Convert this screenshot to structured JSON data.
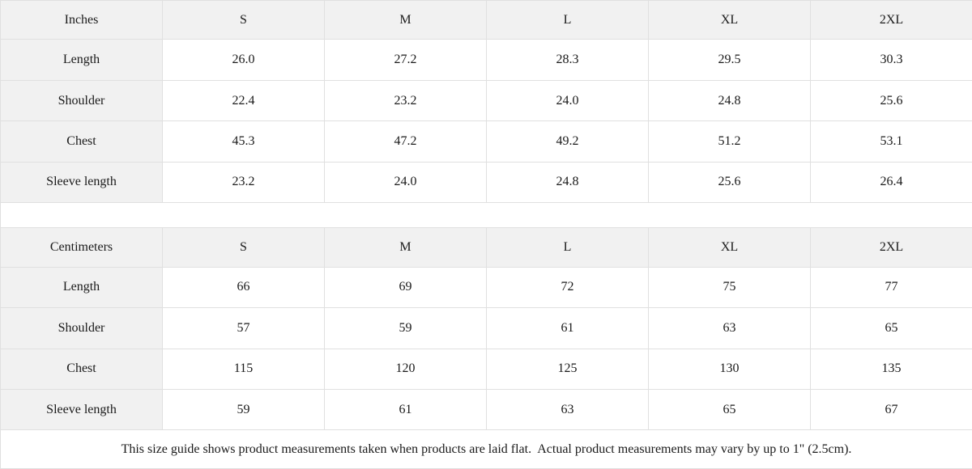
{
  "sections": [
    {
      "unit_label": "Inches",
      "size_headers": [
        "S",
        "M",
        "L",
        "XL",
        "2XL"
      ],
      "rows": [
        {
          "label": "Length",
          "values": [
            "26.0",
            "27.2",
            "28.3",
            "29.5",
            "30.3"
          ]
        },
        {
          "label": "Shoulder",
          "values": [
            "22.4",
            "23.2",
            "24.0",
            "24.8",
            "25.6"
          ]
        },
        {
          "label": "Chest",
          "values": [
            "45.3",
            "47.2",
            "49.2",
            "51.2",
            "53.1"
          ]
        },
        {
          "label": "Sleeve length",
          "values": [
            "23.2",
            "24.0",
            "24.8",
            "25.6",
            "26.4"
          ]
        }
      ]
    },
    {
      "unit_label": "Centimeters",
      "size_headers": [
        "S",
        "M",
        "L",
        "XL",
        "2XL"
      ],
      "rows": [
        {
          "label": "Length",
          "values": [
            "66",
            "69",
            "72",
            "75",
            "77"
          ]
        },
        {
          "label": "Shoulder",
          "values": [
            "57",
            "59",
            "61",
            "63",
            "65"
          ]
        },
        {
          "label": "Chest",
          "values": [
            "115",
            "120",
            "125",
            "130",
            "135"
          ]
        },
        {
          "label": "Sleeve length",
          "values": [
            "59",
            "61",
            "63",
            "65",
            "67"
          ]
        }
      ]
    }
  ],
  "footer_note": "This size guide shows product measurements taken when products are laid flat.  Actual product measurements may vary by up to 1\" (2.5cm).",
  "colors": {
    "header_bg": "#f1f1f1",
    "border": "#e0e0e0",
    "text": "#1a1a1a",
    "cell_bg": "#ffffff"
  }
}
